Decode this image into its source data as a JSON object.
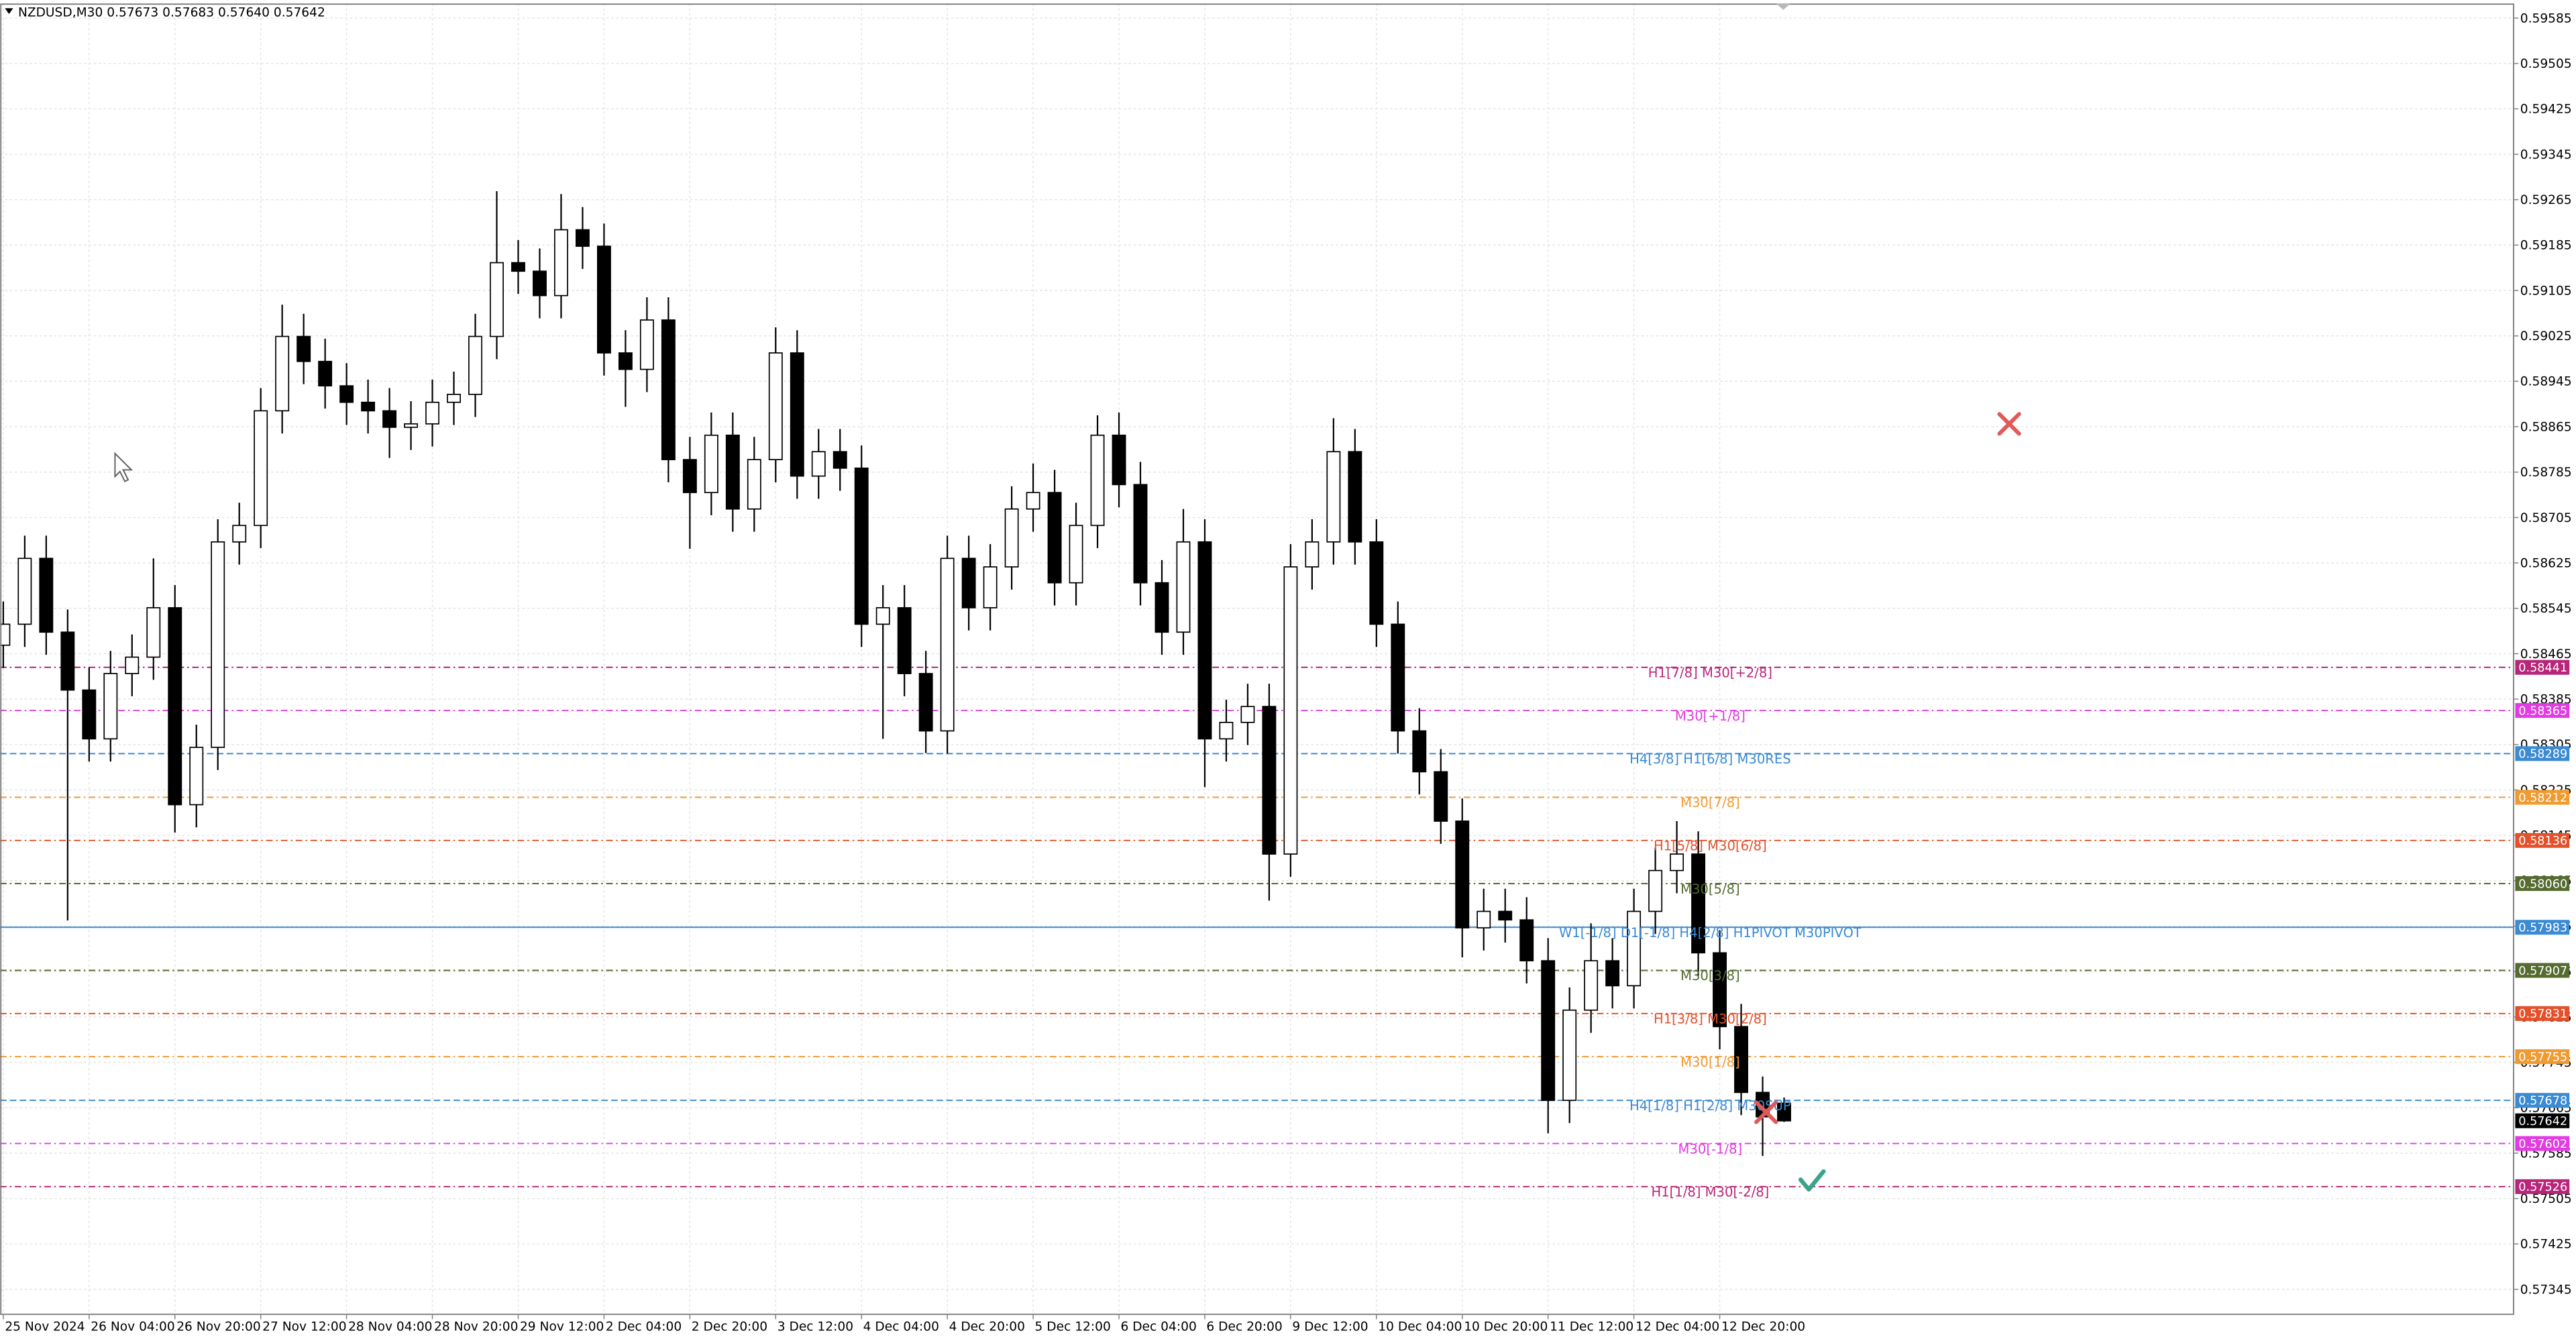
{
  "chart_data": {
    "type": "candlestick",
    "header": "NZDUSD,M30  0.57673 0.57683 0.57640 0.57642",
    "up_color": "#ffffff",
    "down_color": "#000000",
    "wick_color": "#000000",
    "grid": true,
    "xlim": [
      -0.153,
      117
    ],
    "ylim": [
      0.57301,
      0.59611
    ],
    "xticks": [
      {
        "value": 0,
        "label": "25 Nov 2024"
      },
      {
        "value": 4,
        "label": "26 Nov 04:00"
      },
      {
        "value": 8,
        "label": "26 Nov 20:00"
      },
      {
        "value": 12,
        "label": "27 Nov 12:00"
      },
      {
        "value": 16,
        "label": "28 Nov 04:00"
      },
      {
        "value": 20,
        "label": "28 Nov 20:00"
      },
      {
        "value": 24,
        "label": "29 Nov 12:00"
      },
      {
        "value": 28,
        "label": "2 Dec 04:00"
      },
      {
        "value": 32,
        "label": "2 Dec 20:00"
      },
      {
        "value": 36,
        "label": "3 Dec 12:00"
      },
      {
        "value": 40,
        "label": "4 Dec 04:00"
      },
      {
        "value": 44,
        "label": "4 Dec 20:00"
      },
      {
        "value": 48,
        "label": "5 Dec 12:00"
      },
      {
        "value": 52,
        "label": "6 Dec 04:00"
      },
      {
        "value": 56,
        "label": "6 Dec 20:00"
      },
      {
        "value": 60,
        "label": "9 Dec 12:00"
      },
      {
        "value": 64,
        "label": "10 Dec 04:00"
      },
      {
        "value": 68,
        "label": "10 Dec 20:00"
      },
      {
        "value": 72,
        "label": "11 Dec 12:00"
      },
      {
        "value": 76,
        "label": "12 Dec 04:00"
      },
      {
        "value": 80,
        "label": "12 Dec 20:00"
      }
    ],
    "yticks": [
      0.59585,
      0.59505,
      0.59425,
      0.59345,
      0.59265,
      0.59185,
      0.59105,
      0.59025,
      0.58945,
      0.58865,
      0.58785,
      0.58705,
      0.58625,
      0.58545,
      0.58465,
      0.58385,
      0.58305,
      0.58225,
      0.58145,
      0.58065,
      0.57985,
      0.57905,
      0.57825,
      0.57745,
      0.57665,
      0.57585,
      0.57505,
      0.57425,
      0.57345
    ],
    "open": [
      0.5848,
      0.58517,
      0.58633,
      0.58503,
      0.58401,
      0.58315,
      0.5843,
      0.58459,
      0.58546,
      0.58199,
      0.583,
      0.58662,
      0.58691,
      0.58893,
      0.59024,
      0.5898,
      0.58937,
      0.58908,
      0.58893,
      0.58864,
      0.5887,
      0.58908,
      0.58922,
      0.59024,
      0.59154,
      0.59139,
      0.59096,
      0.59212,
      0.59183,
      0.58995,
      0.58966,
      0.59053,
      0.58807,
      0.58749,
      0.5885,
      0.5872,
      0.58807,
      0.58995,
      0.58778,
      0.58821,
      0.58792,
      0.58517,
      0.58546,
      0.5843,
      0.58329,
      0.58633,
      0.58546,
      0.58618,
      0.5872,
      0.58749,
      0.5859,
      0.58691,
      0.5885,
      0.58763,
      0.5859,
      0.58503,
      0.58662,
      0.58315,
      0.58344,
      0.58372,
      0.58112,
      0.58618,
      0.58662,
      0.58821,
      0.58662,
      0.58517,
      0.58329,
      0.58257,
      0.5817,
      0.57982,
      0.58011,
      0.57996,
      0.57924,
      0.57678,
      0.57837,
      0.57924,
      0.5788,
      0.58011,
      0.58083,
      0.58112,
      0.57938,
      0.57808,
      0.57692,
      0.57673
    ],
    "high": [
      0.58557,
      0.58673,
      0.58673,
      0.58543,
      0.58441,
      0.5847,
      0.58499,
      0.58633,
      0.58586,
      0.5834,
      0.58702,
      0.58731,
      0.58933,
      0.5908,
      0.59064,
      0.5902,
      0.58977,
      0.58948,
      0.58933,
      0.5891,
      0.58948,
      0.58962,
      0.59064,
      0.5928,
      0.59194,
      0.59179,
      0.59275,
      0.59252,
      0.59223,
      0.59035,
      0.59093,
      0.59093,
      0.58847,
      0.5889,
      0.5889,
      0.58847,
      0.5904,
      0.59035,
      0.58861,
      0.58861,
      0.58832,
      0.58586,
      0.58586,
      0.5847,
      0.58673,
      0.58673,
      0.58658,
      0.5876,
      0.588,
      0.58789,
      0.58731,
      0.58885,
      0.5889,
      0.58803,
      0.5863,
      0.5872,
      0.58702,
      0.58384,
      0.58412,
      0.58412,
      0.58658,
      0.58702,
      0.5888,
      0.58861,
      0.58702,
      0.58557,
      0.58369,
      0.58297,
      0.5821,
      0.58051,
      0.58051,
      0.58036,
      0.57964,
      0.57877,
      0.5799,
      0.57964,
      0.58051,
      0.58123,
      0.5817,
      0.58152,
      0.57978,
      0.57848,
      0.5772,
      0.57683
    ],
    "low": [
      0.5844,
      0.58477,
      0.58463,
      0.57995,
      0.58275,
      0.58275,
      0.5839,
      0.58419,
      0.5815,
      0.58159,
      0.5826,
      0.58622,
      0.58651,
      0.58853,
      0.5894,
      0.58897,
      0.58868,
      0.58853,
      0.5881,
      0.58824,
      0.5883,
      0.58868,
      0.58882,
      0.58984,
      0.59099,
      0.59056,
      0.59056,
      0.59143,
      0.58955,
      0.589,
      0.58926,
      0.58767,
      0.5865,
      0.58709,
      0.5868,
      0.5868,
      0.58767,
      0.58738,
      0.58738,
      0.58752,
      0.58477,
      0.58315,
      0.5839,
      0.5829,
      0.58289,
      0.58506,
      0.58506,
      0.58578,
      0.5868,
      0.5855,
      0.5855,
      0.58651,
      0.58723,
      0.5855,
      0.58463,
      0.58463,
      0.5823,
      0.58275,
      0.58304,
      0.5803,
      0.58072,
      0.58578,
      0.58622,
      0.58622,
      0.58477,
      0.58289,
      0.58217,
      0.5813,
      0.5793,
      0.57942,
      0.57956,
      0.57884,
      0.5762,
      0.57638,
      0.57797,
      0.5784,
      0.5784,
      0.57971,
      0.58043,
      0.57898,
      0.57768,
      0.57652,
      0.5758,
      0.5764
    ],
    "close": [
      0.58517,
      0.58633,
      0.58503,
      0.58401,
      0.58315,
      0.5843,
      0.58459,
      0.58546,
      0.58199,
      0.583,
      0.58662,
      0.58691,
      0.58893,
      0.59024,
      0.5898,
      0.58937,
      0.58908,
      0.58893,
      0.58864,
      0.5887,
      0.58908,
      0.58922,
      0.59024,
      0.59154,
      0.59139,
      0.59096,
      0.59212,
      0.59183,
      0.58995,
      0.58966,
      0.59053,
      0.58807,
      0.58749,
      0.5885,
      0.5872,
      0.58807,
      0.58995,
      0.58778,
      0.58821,
      0.58792,
      0.58517,
      0.58546,
      0.5843,
      0.58329,
      0.58633,
      0.58546,
      0.58618,
      0.5872,
      0.58749,
      0.5859,
      0.58691,
      0.5885,
      0.58763,
      0.5859,
      0.58503,
      0.58662,
      0.58315,
      0.58344,
      0.58372,
      0.58112,
      0.58618,
      0.58662,
      0.58821,
      0.58662,
      0.58517,
      0.58329,
      0.58257,
      0.5817,
      0.57982,
      0.58011,
      0.57996,
      0.57924,
      0.57678,
      0.57837,
      0.57924,
      0.5788,
      0.58011,
      0.58083,
      0.58112,
      0.57938,
      0.57808,
      0.57692,
      0.57649,
      0.57642
    ],
    "levels": [
      {
        "name": "H1[7/8] M30[+2/8]",
        "value": 0.58441,
        "color": "#b8257a",
        "style": "dash-dot"
      },
      {
        "name": "M30[+1/8]",
        "value": 0.58365,
        "color": "#e23be2",
        "style": "dash-dot"
      },
      {
        "name": "H4[3/8] H1[6/8] M30RES",
        "value": 0.58289,
        "color": "#3a8ad4",
        "style": "dash"
      },
      {
        "name": "M30[7/8]",
        "value": 0.58212,
        "color": "#f09a30",
        "style": "dash-dot"
      },
      {
        "name": "H1[5/8] M30[6/8]",
        "value": 0.58136,
        "color": "#e4502a",
        "style": "dash-dot"
      },
      {
        "name": "M30[5/8]",
        "value": 0.5806,
        "value_label": "0.58060",
        "color": "#556b2f",
        "style": "dash-dot"
      },
      {
        "name": "W1[-1/8] D1[-1/8] H4[2/8] H1PIVOT M30PIVOT",
        "value": 0.57983,
        "color": "#3a8ad4",
        "style": "solid"
      },
      {
        "name": "M30[3/8]",
        "value": 0.57907,
        "color": "#556b2f",
        "style": "dash-dot"
      },
      {
        "name": "H1[3/8] M30[2/8]",
        "value": 0.57831,
        "color": "#e4502a",
        "style": "dash-dot"
      },
      {
        "name": "M30[1/8]",
        "value": 0.57755,
        "color": "#f09a30",
        "style": "dash-dot"
      },
      {
        "name": "H4[1/8] H1[2/8] M30SUP",
        "value": 0.57678,
        "color": "#3a8ad4",
        "style": "dash"
      },
      {
        "name": "M30[-1/8]",
        "value": 0.57602,
        "color": "#e23be2",
        "style": "dash-dot"
      },
      {
        "name": "H1[1/8] M30[-2/8]",
        "value": 0.57526,
        "color": "#b8257a",
        "style": "dash-dot"
      }
    ],
    "last_price": 0.57642,
    "last_color": "#000000"
  }
}
